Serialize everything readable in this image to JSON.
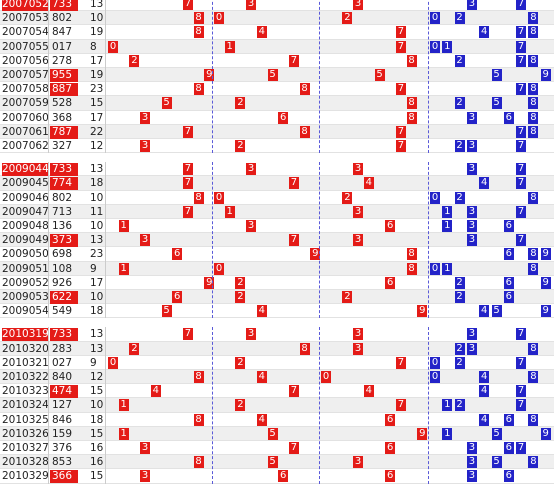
{
  "sections": [
    {
      "rows": [
        {
          "period": "2007052",
          "number": "733",
          "sum": 13,
          "highlight": true,
          "period_highlight": true,
          "digits": [
            7,
            3,
            3
          ],
          "blue": [
            3,
            7
          ]
        },
        {
          "period": "2007053",
          "number": "802",
          "sum": 10,
          "digits": [
            8,
            0,
            2
          ],
          "blue": [
            0,
            2,
            8
          ]
        },
        {
          "period": "2007054",
          "number": "847",
          "sum": 19,
          "digits": [
            8,
            4,
            7
          ],
          "blue": [
            4,
            7,
            8
          ]
        },
        {
          "period": "2007055",
          "number": "017",
          "sum": 8,
          "digits": [
            0,
            1,
            7
          ],
          "blue": [
            0,
            1,
            7
          ]
        },
        {
          "period": "2007056",
          "number": "278",
          "sum": 17,
          "digits": [
            2,
            7,
            8
          ],
          "blue": [
            2,
            7,
            8
          ]
        },
        {
          "period": "2007057",
          "number": "955",
          "sum": 19,
          "highlight": true,
          "digits": [
            9,
            5,
            5
          ],
          "blue": [
            5,
            9
          ]
        },
        {
          "period": "2007058",
          "number": "887",
          "sum": 23,
          "highlight": true,
          "digits": [
            8,
            8,
            7
          ],
          "blue": [
            7,
            8
          ]
        },
        {
          "period": "2007059",
          "number": "528",
          "sum": 15,
          "digits": [
            5,
            2,
            8
          ],
          "blue": [
            2,
            5,
            8
          ]
        },
        {
          "period": "2007060",
          "number": "368",
          "sum": 17,
          "digits": [
            3,
            6,
            8
          ],
          "blue": [
            3,
            6,
            8
          ]
        },
        {
          "period": "2007061",
          "number": "787",
          "sum": 22,
          "highlight": true,
          "digits": [
            7,
            8,
            7
          ],
          "blue": [
            7,
            8
          ]
        },
        {
          "period": "2007062",
          "number": "327",
          "sum": 12,
          "digits": [
            3,
            2,
            7
          ],
          "blue": [
            2,
            3,
            7
          ]
        }
      ]
    },
    {
      "rows": [
        {
          "period": "2009044",
          "number": "733",
          "sum": 13,
          "highlight": true,
          "period_highlight": true,
          "digits": [
            7,
            3,
            3
          ],
          "blue": [
            3,
            7
          ]
        },
        {
          "period": "2009045",
          "number": "774",
          "sum": 18,
          "highlight": true,
          "digits": [
            7,
            7,
            4
          ],
          "blue": [
            4,
            7
          ]
        },
        {
          "period": "2009046",
          "number": "802",
          "sum": 10,
          "digits": [
            8,
            0,
            2
          ],
          "blue": [
            0,
            2,
            8
          ]
        },
        {
          "period": "2009047",
          "number": "713",
          "sum": 11,
          "digits": [
            7,
            1,
            3
          ],
          "blue": [
            1,
            3,
            7
          ]
        },
        {
          "period": "2009048",
          "number": "136",
          "sum": 10,
          "digits": [
            1,
            3,
            6
          ],
          "blue": [
            1,
            3,
            6
          ]
        },
        {
          "period": "2009049",
          "number": "373",
          "sum": 13,
          "highlight": true,
          "digits": [
            3,
            7,
            3
          ],
          "blue": [
            3,
            7
          ]
        },
        {
          "period": "2009050",
          "number": "698",
          "sum": 23,
          "digits": [
            6,
            9,
            8
          ],
          "blue": [
            6,
            8,
            9
          ]
        },
        {
          "period": "2009051",
          "number": "108",
          "sum": 9,
          "digits": [
            1,
            0,
            8
          ],
          "blue": [
            0,
            1,
            8
          ]
        },
        {
          "period": "2009052",
          "number": "926",
          "sum": 17,
          "digits": [
            9,
            2,
            6
          ],
          "blue": [
            2,
            6,
            9
          ]
        },
        {
          "period": "2009053",
          "number": "622",
          "sum": 10,
          "highlight": true,
          "digits": [
            6,
            2,
            2
          ],
          "blue": [
            2,
            6
          ]
        },
        {
          "period": "2009054",
          "number": "549",
          "sum": 18,
          "digits": [
            5,
            4,
            9
          ],
          "blue": [
            4,
            5,
            9
          ]
        }
      ]
    },
    {
      "rows": [
        {
          "period": "2010319",
          "number": "733",
          "sum": 13,
          "highlight": true,
          "period_highlight": true,
          "digits": [
            7,
            3,
            3
          ],
          "blue": [
            3,
            7
          ]
        },
        {
          "period": "2010320",
          "number": "283",
          "sum": 13,
          "digits": [
            2,
            8,
            3
          ],
          "blue": [
            2,
            3,
            8
          ]
        },
        {
          "period": "2010321",
          "number": "027",
          "sum": 9,
          "digits": [
            0,
            2,
            7
          ],
          "blue": [
            0,
            2,
            7
          ]
        },
        {
          "period": "2010322",
          "number": "840",
          "sum": 12,
          "digits": [
            8,
            4,
            0
          ],
          "blue": [
            0,
            4,
            8
          ]
        },
        {
          "period": "2010323",
          "number": "474",
          "sum": 15,
          "highlight": true,
          "digits": [
            4,
            7,
            4
          ],
          "blue": [
            4,
            7
          ]
        },
        {
          "period": "2010324",
          "number": "127",
          "sum": 10,
          "digits": [
            1,
            2,
            7
          ],
          "blue": [
            1,
            2,
            7
          ]
        },
        {
          "period": "2010325",
          "number": "846",
          "sum": 18,
          "digits": [
            8,
            4,
            6
          ],
          "blue": [
            4,
            6,
            8
          ]
        },
        {
          "period": "2010326",
          "number": "159",
          "sum": 15,
          "digits": [
            1,
            5,
            9
          ],
          "blue": [
            1,
            5,
            9
          ]
        },
        {
          "period": "2010327",
          "number": "376",
          "sum": 16,
          "digits": [
            3,
            7,
            6
          ],
          "blue": [
            3,
            6,
            7
          ]
        },
        {
          "period": "2010328",
          "number": "853",
          "sum": 16,
          "digits": [
            8,
            5,
            3
          ],
          "blue": [
            3,
            5,
            8
          ]
        },
        {
          "period": "2010329",
          "number": "366",
          "sum": 15,
          "highlight": true,
          "digits": [
            3,
            6,
            6
          ],
          "blue": [
            3,
            6
          ]
        }
      ]
    }
  ]
}
